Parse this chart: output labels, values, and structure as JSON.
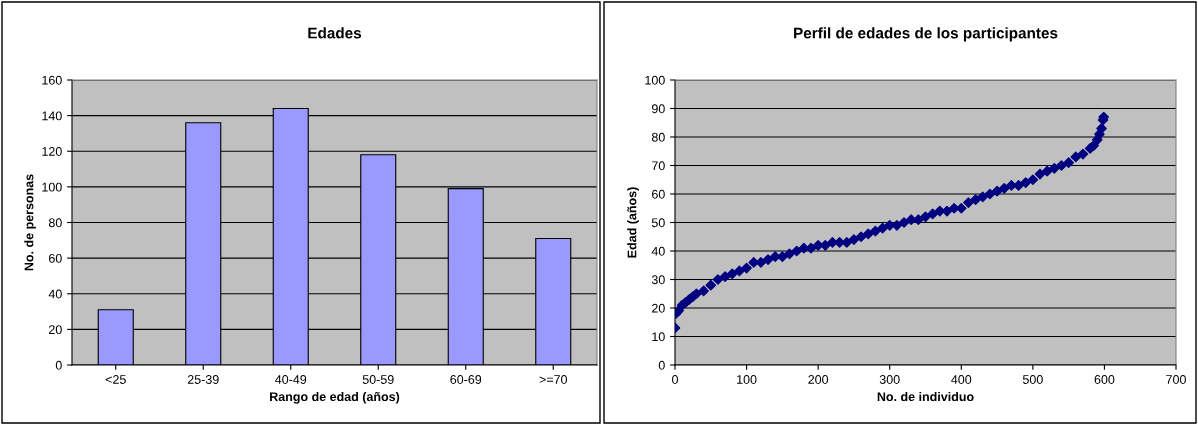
{
  "chart_data": [
    {
      "type": "bar",
      "title": "Edades",
      "xlabel": "Rango de edad (años)",
      "ylabel": "No. de personas",
      "categories": [
        "<25",
        "25-39",
        "40-49",
        "50-59",
        "60-69",
        ">=70"
      ],
      "values": [
        31,
        136,
        144,
        118,
        99,
        71
      ],
      "color": "#9999ff",
      "ylim": [
        0,
        160
      ],
      "yticks": [
        0,
        20,
        40,
        60,
        80,
        100,
        120,
        140,
        160
      ],
      "grid": "y",
      "legend": false
    },
    {
      "type": "scatter",
      "title": "Perfil de edades de los participantes",
      "xlabel": "No. de individuo",
      "ylabel": "Edad (años)",
      "series": [
        {
          "color": "#000080",
          "x": [
            0,
            1,
            5,
            10,
            15,
            20,
            25,
            30,
            40,
            50,
            60,
            70,
            80,
            90,
            100,
            110,
            120,
            130,
            140,
            150,
            160,
            170,
            180,
            190,
            200,
            210,
            220,
            230,
            240,
            250,
            260,
            270,
            280,
            290,
            300,
            310,
            320,
            330,
            340,
            350,
            360,
            370,
            380,
            390,
            400,
            410,
            420,
            430,
            440,
            450,
            460,
            470,
            480,
            490,
            500,
            510,
            520,
            530,
            540,
            550,
            560,
            570,
            580,
            585,
            590,
            593,
            596,
            598,
            599
          ],
          "values": [
            13,
            18,
            19,
            21,
            22,
            23,
            24,
            25,
            26,
            28,
            30,
            31,
            32,
            33,
            34,
            36,
            36,
            37,
            38,
            38,
            39,
            40,
            41,
            41,
            42,
            42,
            43,
            43,
            43,
            44,
            45,
            46,
            47,
            48,
            49,
            49,
            50,
            51,
            51,
            52,
            53,
            54,
            54,
            55,
            55,
            57,
            58,
            59,
            60,
            61,
            62,
            63,
            63,
            64,
            65,
            67,
            68,
            69,
            70,
            71,
            73,
            74,
            76,
            77,
            79,
            81,
            83,
            86,
            87
          ]
        }
      ],
      "marker": "diamond",
      "xlim": [
        0,
        700
      ],
      "xticks": [
        0,
        100,
        200,
        300,
        400,
        500,
        600,
        700
      ],
      "ylim": [
        0,
        100
      ],
      "yticks": [
        0,
        10,
        20,
        30,
        40,
        50,
        60,
        70,
        80,
        90,
        100
      ],
      "grid": "y",
      "legend": false
    }
  ]
}
